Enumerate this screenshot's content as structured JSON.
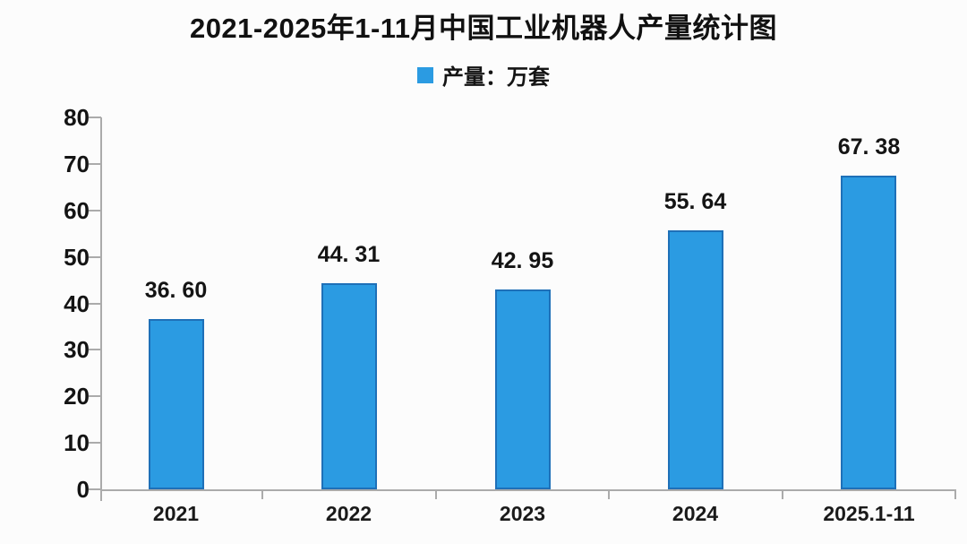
{
  "title": "2021-2025年1-11月中国工业机器人产量统计图",
  "legend": {
    "label": "产量：万套"
  },
  "chart_data": {
    "type": "bar",
    "title": "2021-2025年1-11月中国工业机器人产量统计图",
    "legend_entries": [
      "产量：万套"
    ],
    "legend_position": "top",
    "categories": [
      "2021",
      "2022",
      "2023",
      "2024",
      "2025.1-11"
    ],
    "values": [
      36.6,
      44.31,
      42.95,
      55.64,
      67.38
    ],
    "value_labels": [
      "36. 60",
      "44. 31",
      "42. 95",
      "55. 64",
      "67. 38"
    ],
    "unit": "万套",
    "xlabel": "",
    "ylabel": "",
    "ylim": [
      0,
      80
    ],
    "yticks": [
      0,
      10,
      20,
      30,
      40,
      50,
      60,
      70,
      80
    ],
    "grid": false,
    "colors": {
      "bar_fill": "#2B9BE2",
      "bar_border": "#1E70B8",
      "axis": "#ABABAB",
      "text": "#141414",
      "background": "#FCFCFC"
    }
  }
}
